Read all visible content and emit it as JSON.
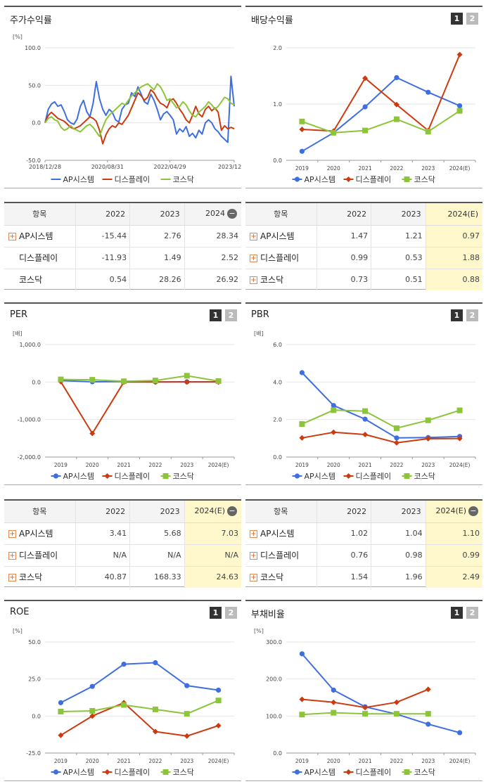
{
  "legend_names": [
    "AP시스템",
    "디스플레이",
    "코스닥"
  ],
  "colors": {
    "ap": "#3f6ee0",
    "disp": "#cc3a10",
    "kosdaq": "#8cc43a"
  },
  "panels": {
    "stock_return": {
      "title": "주가수익률"
    },
    "dividend": {
      "title": "배당수익률",
      "btn1": "1",
      "btn2": "2"
    },
    "per": {
      "title": "PER",
      "btn1": "1",
      "btn2": "2"
    },
    "pbr": {
      "title": "PBR",
      "btn1": "1",
      "btn2": "2"
    },
    "roe": {
      "title": "ROE",
      "btn1": "1",
      "btn2": "2"
    },
    "debt": {
      "title": "부채비율",
      "btn1": "1",
      "btn2": "2"
    }
  },
  "tables": {
    "stock_return": {
      "headers": [
        "항목",
        "2022",
        "2023",
        "2024"
      ],
      "rows": [
        {
          "name": "AP시스템",
          "plus": true,
          "values": [
            "-15.44",
            "2.76",
            "28.34"
          ]
        },
        {
          "name": "디스플레이",
          "plus": false,
          "values": [
            "-11.93",
            "1.49",
            "2.52"
          ]
        },
        {
          "name": "코스닥",
          "plus": false,
          "values": [
            "0.54",
            "28.26",
            "26.92"
          ]
        }
      ]
    },
    "dividend": {
      "headers": [
        "항목",
        "2022",
        "2023",
        "2024(E)"
      ],
      "rows": [
        {
          "name": "AP시스템",
          "plus": true,
          "values": [
            "1.47",
            "1.21",
            "0.97"
          ]
        },
        {
          "name": "디스플레이",
          "plus": true,
          "values": [
            "0.99",
            "0.53",
            "1.88"
          ]
        },
        {
          "name": "코스닥",
          "plus": true,
          "values": [
            "0.73",
            "0.51",
            "0.88"
          ]
        }
      ]
    },
    "per": {
      "headers": [
        "항목",
        "2022",
        "2023",
        "2024(E)"
      ],
      "rows": [
        {
          "name": "AP시스템",
          "plus": true,
          "values": [
            "3.41",
            "5.68",
            "7.03"
          ]
        },
        {
          "name": "디스플레이",
          "plus": true,
          "values": [
            "N/A",
            "N/A",
            "N/A"
          ]
        },
        {
          "name": "코스닥",
          "plus": true,
          "values": [
            "40.87",
            "168.33",
            "24.63"
          ]
        }
      ]
    },
    "pbr": {
      "headers": [
        "항목",
        "2022",
        "2023",
        "2024(E)"
      ],
      "rows": [
        {
          "name": "AP시스템",
          "plus": true,
          "values": [
            "1.02",
            "1.04",
            "1.10"
          ]
        },
        {
          "name": "디스플레이",
          "plus": true,
          "values": [
            "0.76",
            "0.98",
            "0.99"
          ]
        },
        {
          "name": "코스닥",
          "plus": true,
          "values": [
            "1.54",
            "1.96",
            "2.49"
          ]
        }
      ]
    }
  },
  "chart_data": [
    {
      "id": "stock_return",
      "type": "line",
      "unit": "[%]",
      "ylim": [
        -50,
        100
      ],
      "yticks": [
        "100.0",
        "50.0",
        "0.0",
        "-50.0"
      ],
      "xticks": [
        "2018/12/28",
        "2020/08/31",
        "2022/04/29",
        "2023/12/28"
      ],
      "x_points": 60,
      "series": [
        {
          "name": "AP시스템",
          "values": [
            0,
            18,
            25,
            28,
            22,
            24,
            15,
            4,
            0,
            -2,
            5,
            22,
            30,
            15,
            8,
            26,
            55,
            32,
            18,
            10,
            18,
            14,
            4,
            1,
            18,
            24,
            26,
            40,
            35,
            48,
            38,
            28,
            25,
            38,
            30,
            18,
            4,
            12,
            15,
            10,
            4,
            -15,
            -8,
            -12,
            -5,
            -18,
            -14,
            -20,
            -10,
            -15,
            0,
            4,
            0,
            -8,
            -12,
            -18,
            -22,
            -26,
            62,
            22
          ]
        },
        {
          "name": "디스플레이",
          "values": [
            0,
            10,
            14,
            10,
            6,
            4,
            2,
            -2,
            -6,
            -8,
            -6,
            -4,
            0,
            4,
            8,
            6,
            2,
            -10,
            -28,
            -16,
            -8,
            -4,
            -6,
            0,
            -2,
            4,
            10,
            20,
            30,
            40,
            36,
            30,
            34,
            44,
            40,
            32,
            26,
            24,
            20,
            30,
            32,
            26,
            18,
            12,
            4,
            0,
            10,
            22,
            12,
            8,
            18,
            22,
            16,
            20,
            14,
            -10,
            -4,
            -8,
            -6,
            -8
          ]
        },
        {
          "name": "코스닥",
          "values": [
            0,
            6,
            8,
            4,
            2,
            -6,
            -10,
            -8,
            -4,
            -8,
            -10,
            -12,
            -8,
            -4,
            -2,
            -6,
            -12,
            -18,
            -6,
            4,
            10,
            14,
            18,
            22,
            26,
            24,
            30,
            36,
            40,
            44,
            48,
            50,
            52,
            48,
            44,
            52,
            48,
            40,
            30,
            32,
            26,
            20,
            22,
            28,
            24,
            16,
            10,
            8,
            14,
            18,
            22,
            28,
            24,
            18,
            22,
            28,
            34,
            32,
            26,
            24
          ]
        }
      ]
    },
    {
      "id": "dividend",
      "type": "line",
      "unit": "",
      "ylim": [
        0,
        2
      ],
      "yticks": [
        "2.0",
        "1.0",
        "0.0"
      ],
      "categories": [
        "2019",
        "2020",
        "2021",
        "2022",
        "2023",
        "2024(E)"
      ],
      "series": [
        {
          "name": "AP시스템",
          "values": [
            0.16,
            0.49,
            0.95,
            1.47,
            1.21,
            0.97
          ]
        },
        {
          "name": "디스플레이",
          "values": [
            0.55,
            0.52,
            1.46,
            0.99,
            0.53,
            1.88
          ]
        },
        {
          "name": "코스닥",
          "values": [
            0.69,
            0.49,
            0.53,
            0.73,
            0.51,
            0.88
          ]
        }
      ]
    },
    {
      "id": "per",
      "type": "line",
      "unit": "[배]",
      "ylim": [
        -2000,
        1000
      ],
      "yticks": [
        "1,000.0",
        "0.0",
        "-1,000.0",
        "-2,000.0"
      ],
      "categories": [
        "2019",
        "2020",
        "2021",
        "2022",
        "2023",
        "2024(E)"
      ],
      "series": [
        {
          "name": "AP시스템",
          "values": [
            40,
            6,
            10,
            3.41,
            5.68,
            7.03
          ]
        },
        {
          "name": "디스플레이",
          "values": [
            10,
            -1370,
            0,
            0,
            0,
            0
          ]
        },
        {
          "name": "코스닥",
          "values": [
            70,
            60,
            20,
            40.87,
            168.33,
            24.63
          ]
        }
      ]
    },
    {
      "id": "pbr",
      "type": "line",
      "unit": "[배]",
      "ylim": [
        0,
        6
      ],
      "yticks": [
        "6.0",
        "4.0",
        "2.0",
        "0.0"
      ],
      "categories": [
        "2019",
        "2020",
        "2021",
        "2022",
        "2023",
        "2024(E)"
      ],
      "series": [
        {
          "name": "AP시스템",
          "values": [
            4.5,
            2.75,
            2.02,
            1.02,
            1.04,
            1.1
          ]
        },
        {
          "name": "디스플레이",
          "values": [
            1.02,
            1.32,
            1.2,
            0.76,
            0.98,
            0.99
          ]
        },
        {
          "name": "코스닥",
          "values": [
            1.76,
            2.5,
            2.45,
            1.54,
            1.96,
            2.49
          ]
        }
      ]
    },
    {
      "id": "roe",
      "type": "line",
      "unit": "[%]",
      "ylim": [
        -25,
        50
      ],
      "yticks": [
        "50.0",
        "25.0",
        "0.0",
        "-25.0"
      ],
      "categories": [
        "2019",
        "2020",
        "2021",
        "2022",
        "2023",
        "2024(E)"
      ],
      "series": [
        {
          "name": "AP시스템",
          "values": [
            9,
            20,
            35,
            36,
            20.5,
            17.5
          ]
        },
        {
          "name": "디스플레이",
          "values": [
            -13,
            0,
            9,
            -10.5,
            -13.5,
            -6.5
          ]
        },
        {
          "name": "코스닥",
          "values": [
            3,
            3.5,
            7.5,
            4.5,
            1.5,
            10.5
          ]
        }
      ]
    },
    {
      "id": "debt",
      "type": "line",
      "unit": "[%]",
      "ylim": [
        0,
        300
      ],
      "yticks": [
        "300.0",
        "200.0",
        "100.0",
        "0.0"
      ],
      "categories": [
        "2019",
        "2020",
        "2021",
        "2022",
        "2023",
        "2024(E)"
      ],
      "series": [
        {
          "name": "AP시스템",
          "values": [
            268,
            170,
            125,
            105,
            78,
            55
          ]
        },
        {
          "name": "디스플레이",
          "values": [
            145,
            137,
            123,
            137,
            172,
            null
          ]
        },
        {
          "name": "코스닥",
          "values": [
            104,
            109,
            106,
            106,
            106,
            null
          ]
        }
      ]
    }
  ]
}
